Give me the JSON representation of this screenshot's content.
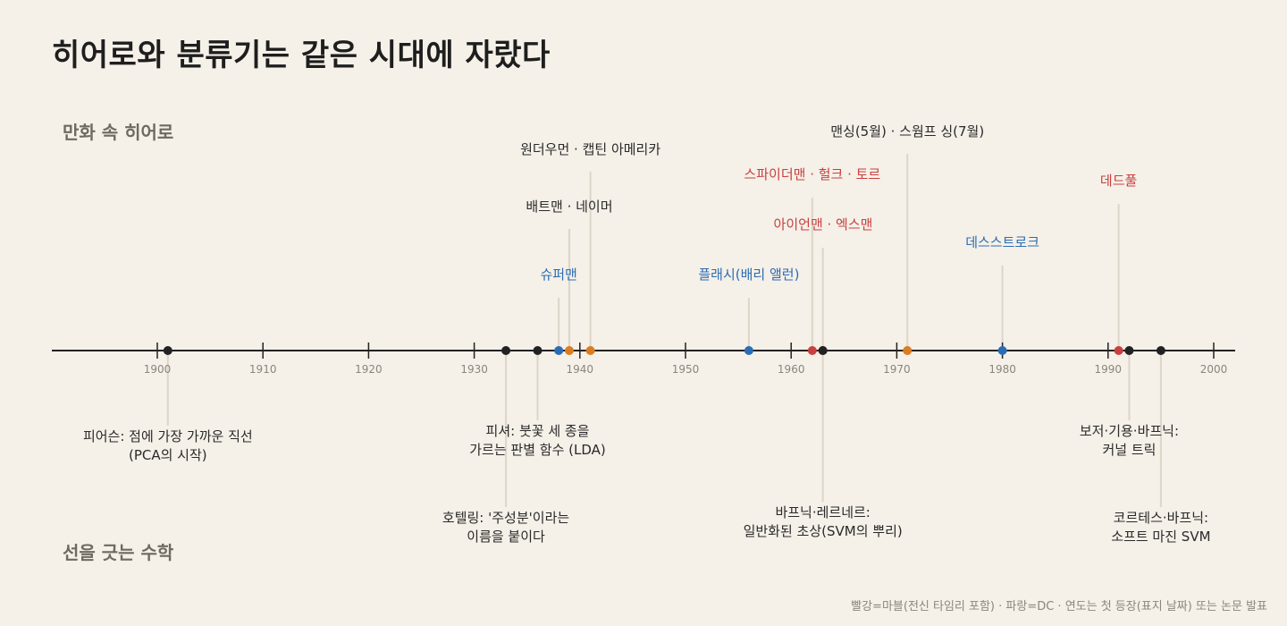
{
  "title": "히어로와 분류기는 같은 시대에 자랐다",
  "sections": {
    "top": "만화 속 히어로",
    "bottom": "선을 긋는 수학"
  },
  "footnote": "빨강=마블(전신 타임리 포함) · 파랑=DC · 연도는 첫 등장(표지 날짜) 또는 논문 발표",
  "colors": {
    "background": "#f5f0e8",
    "axis": "#222222",
    "math": "#222222",
    "marvel": "#c9403f",
    "dc": "#2a6db5",
    "other": "#d97d24",
    "leader": "#dcd6c8"
  },
  "axis": {
    "ticks": [
      1900,
      1910,
      1920,
      1930,
      1940,
      1950,
      1960,
      1970,
      1980,
      1990,
      2000
    ],
    "range": [
      1890,
      2002
    ]
  },
  "events": [
    {
      "year": 1901,
      "side": "bottom",
      "group": "math",
      "lines": [
        "피어슨: 점에 가장 가까운 직선",
        "(PCA의 시작)"
      ]
    },
    {
      "year": 1933,
      "side": "bottom",
      "group": "math",
      "lines": [
        "호텔링: '주성분'이라는",
        "이름을 붙이다"
      ]
    },
    {
      "year": 1936,
      "side": "bottom",
      "group": "math",
      "lines": [
        "피셔: 붓꽃 세 종을",
        "가르는 판별 함수 (LDA)"
      ]
    },
    {
      "year": 1938,
      "side": "top",
      "group": "dc",
      "lines": [
        "슈퍼맨"
      ]
    },
    {
      "year": 1939,
      "side": "top",
      "group": "other",
      "lines": [
        "배트맨 · 네이머"
      ]
    },
    {
      "year": 1941,
      "side": "top",
      "group": "other",
      "lines": [
        "원더우먼 · 캡틴 아메리카"
      ]
    },
    {
      "year": 1956,
      "side": "top",
      "group": "dc",
      "lines": [
        "플래시(배리 앨런)"
      ]
    },
    {
      "year": 1962,
      "side": "top",
      "group": "marvel",
      "lines": [
        "스파이더맨 · 헐크 · 토르"
      ]
    },
    {
      "year": 1963,
      "side": "top",
      "group": "marvel",
      "lines": [
        "아이언맨 · 엑스맨"
      ]
    },
    {
      "year": 1963,
      "side": "bottom",
      "group": "math",
      "lines": [
        "바프닉·레르네르:",
        "일반화된 초상(SVM의 뿌리)"
      ]
    },
    {
      "year": 1971,
      "side": "top",
      "group": "other",
      "lines": [
        "맨싱(5월) · 스웜프 싱(7월)"
      ]
    },
    {
      "year": 1980,
      "side": "top",
      "group": "dc",
      "lines": [
        "데스스트로크"
      ]
    },
    {
      "year": 1991,
      "side": "top",
      "group": "marvel",
      "lines": [
        "데드풀"
      ]
    },
    {
      "year": 1992,
      "side": "bottom",
      "group": "math",
      "lines": [
        "보저·기용·바프닉:",
        "커널 트릭"
      ]
    },
    {
      "year": 1995,
      "side": "bottom",
      "group": "math",
      "lines": [
        "코르테스·바프닉:",
        "소프트 마진 SVM"
      ]
    }
  ]
}
